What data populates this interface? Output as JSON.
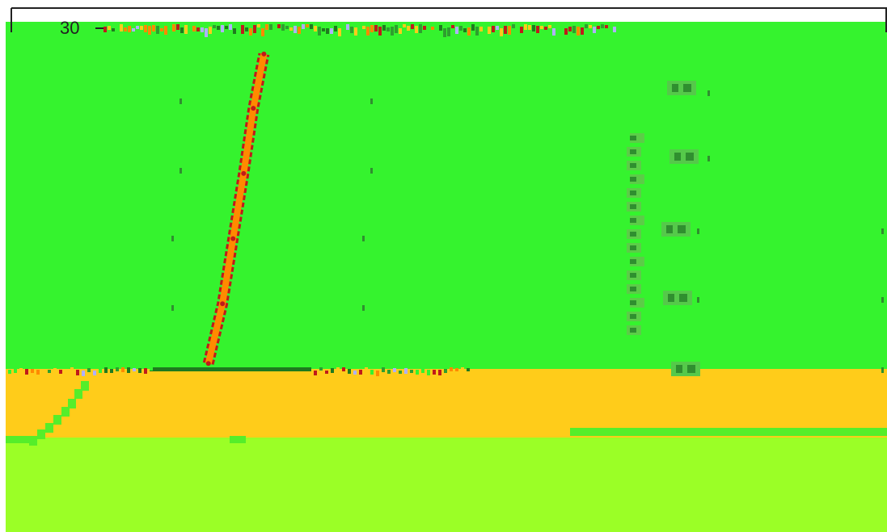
{
  "chart_data": {
    "type": "area",
    "title": "",
    "xlabel": "",
    "ylabel": "",
    "y_tick_labels": [
      "30"
    ],
    "y_tick_values": [
      30
    ],
    "xlim": [
      0,
      100
    ],
    "ylim": [
      0,
      32
    ],
    "grid": false,
    "legend": "none",
    "rotated_label": "",
    "colors": {
      "background": "#ffffff",
      "frame": "#222222",
      "region_upper": "#35f32e",
      "region_middle": "#ffcc1a",
      "region_lower": "#9bff26",
      "band_lower_right": "#55ee2a",
      "boundary_line": "#ff8a00",
      "boundary_edge": "#c01a1a",
      "baseline": "#1e7a1e",
      "noise_dots": "#2f8f2f"
    },
    "series": [
      {
        "name": "",
        "color": "#ff8a00",
        "x": [
          23.0,
          24.6,
          25.8,
          27.0,
          28.1,
          29.3
        ],
        "y": [
          0.5,
          6.0,
          12.0,
          18.0,
          24.0,
          29.0
        ]
      }
    ],
    "regions": [
      {
        "fill": "#35f32e",
        "y_range": [
          0.0,
          31.0
        ]
      },
      {
        "fill": "#ffcc1a",
        "y_range": [
          -6.0,
          0.0
        ]
      },
      {
        "fill": "#9bff26",
        "y_range": [
          -15.0,
          -6.0
        ]
      }
    ]
  }
}
